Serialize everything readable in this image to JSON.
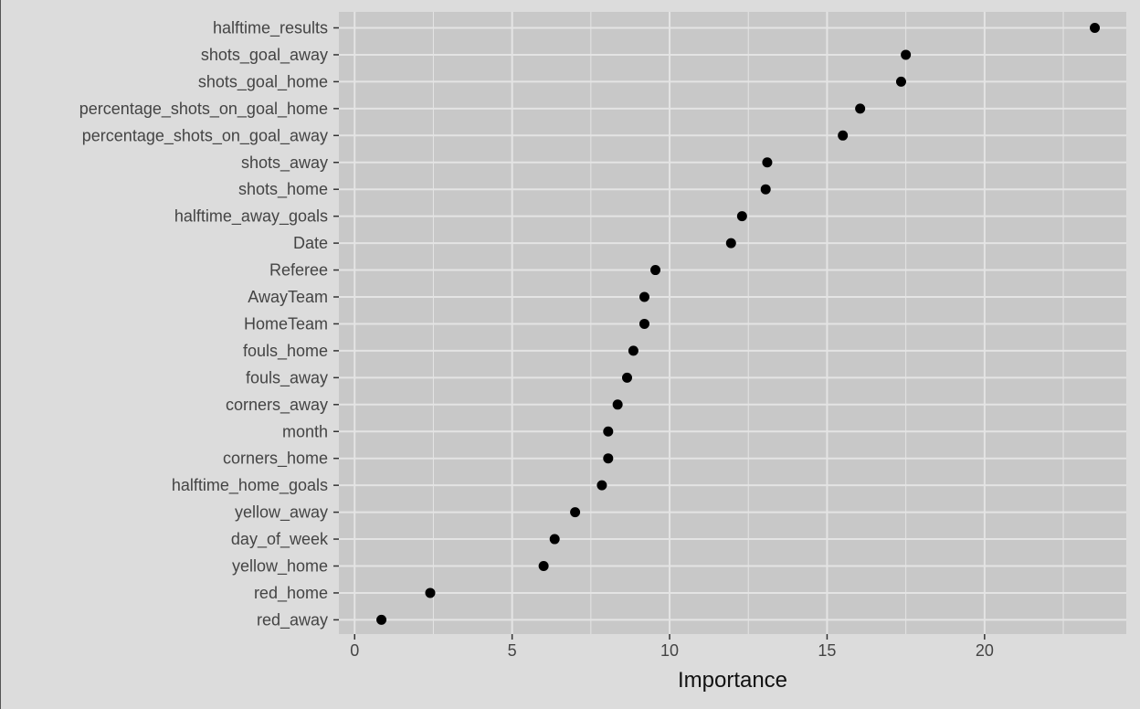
{
  "chart_data": {
    "type": "scatter",
    "title": "",
    "xlabel": "Importance",
    "ylabel": "",
    "xlim": [
      -0.5,
      24.5
    ],
    "xticks": [
      0,
      5,
      10,
      15,
      20
    ],
    "grid": true,
    "colors": {
      "panel": "#c8c8c8",
      "background": "#dcdcdc",
      "grid": "#e4e4e4",
      "point": "#000000"
    },
    "categories": [
      "halftime_results",
      "shots_goal_away",
      "shots_goal_home",
      "percentage_shots_on_goal_home",
      "percentage_shots_on_goal_away",
      "shots_away",
      "shots_home",
      "halftime_away_goals",
      "Date",
      "Referee",
      "AwayTeam",
      "HomeTeam",
      "fouls_home",
      "fouls_away",
      "corners_away",
      "month",
      "corners_home",
      "halftime_home_goals",
      "yellow_away",
      "day_of_week",
      "yellow_home",
      "red_home",
      "red_away"
    ],
    "values": [
      23.5,
      17.5,
      17.35,
      16.05,
      15.5,
      13.1,
      13.05,
      12.3,
      11.95,
      9.55,
      9.2,
      9.2,
      8.85,
      8.65,
      8.35,
      8.05,
      8.05,
      7.85,
      7.0,
      6.35,
      6.0,
      2.4,
      0.85
    ]
  }
}
